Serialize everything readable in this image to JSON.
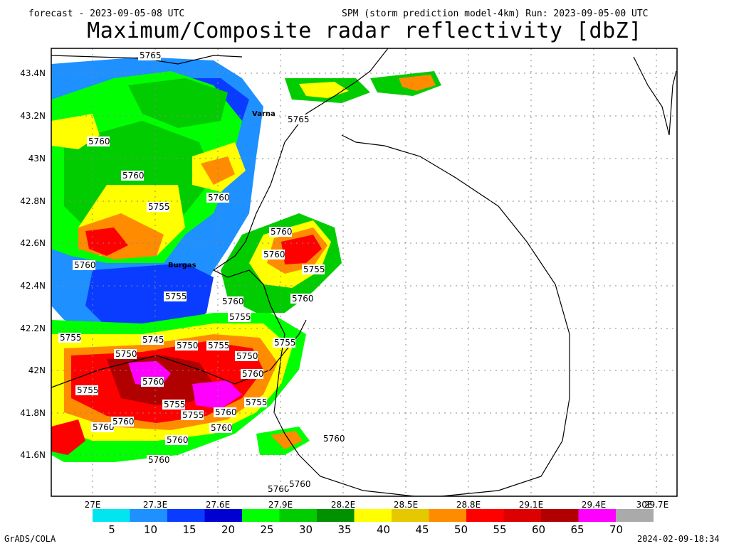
{
  "header": {
    "forecast": "forecast - 2023-09-05-08 UTC",
    "model_run": "SPM (storm prediction model-4km) Run: 2023-09-05-00 UTC",
    "title": "Maximum/Composite radar reflectivity [dbZ]"
  },
  "map": {
    "lat_labels": [
      "43.4N",
      "43.2N",
      "43N",
      "42.8N",
      "42.6N",
      "42.4N",
      "42.2N",
      "42N",
      "41.8N",
      "41.6N"
    ],
    "lon_labels": [
      "27E",
      "27.3E",
      "27.6E",
      "27.9E",
      "28.2E",
      "28.5E",
      "28.8E",
      "29.1E",
      "29.4E",
      "29.7E",
      "30E"
    ],
    "cities": [
      "Varna",
      "Burgas"
    ],
    "contour_labels": [
      "5765",
      "5765",
      "5760",
      "5760",
      "5760",
      "5755",
      "5760",
      "5760",
      "5760",
      "5755",
      "5755",
      "5760",
      "5760",
      "5755",
      "5755",
      "5745",
      "5750",
      "5750",
      "5755",
      "5750",
      "5755",
      "5760",
      "5755",
      "5760",
      "5755",
      "5755",
      "5760",
      "5755",
      "5760",
      "5760",
      "5760",
      "5760",
      "5760",
      "5760",
      "5760",
      "5760"
    ]
  },
  "legend": {
    "ticks": [
      "5",
      "10",
      "15",
      "20",
      "25",
      "30",
      "35",
      "40",
      "45",
      "50",
      "55",
      "60",
      "65",
      "70"
    ],
    "colors": [
      "#00e5ee",
      "#1e90ff",
      "#0a3cff",
      "#0000d0",
      "#00ff00",
      "#00cc00",
      "#009000",
      "#ffff00",
      "#e6c800",
      "#ff8c00",
      "#ff0000",
      "#dd0000",
      "#b00000",
      "#ff00ff",
      "#aaaaaa"
    ]
  },
  "footer": {
    "left": "GrADS/COLA",
    "right": "2024-02-09-18:34"
  }
}
